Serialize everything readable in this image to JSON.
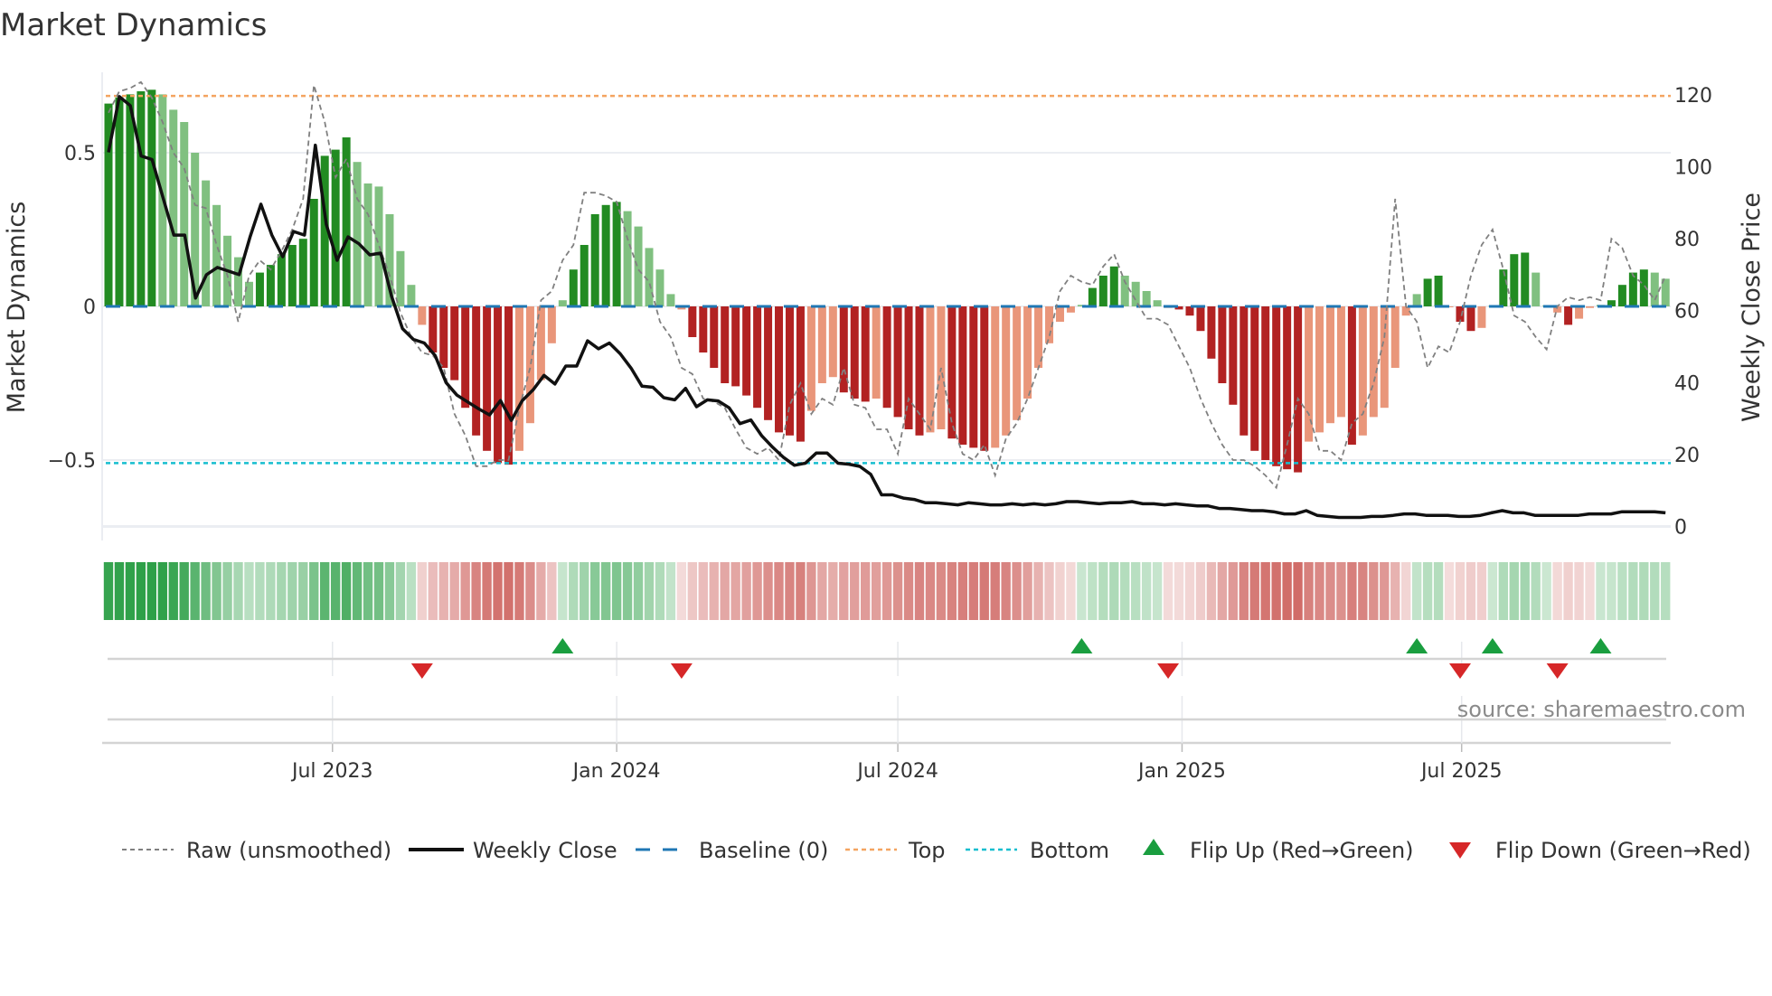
{
  "chart_data": {
    "type": "bar",
    "title": "Market Dynamics",
    "ylabel": "Market Dynamics",
    "ylabel_right": "Weekly Close Price",
    "start_week": "2023-02-06",
    "frequency": "weekly",
    "ylim": [
      -0.73,
      0.76
    ],
    "ylim_right": [
      -1.3,
      130
    ],
    "yticks": [
      {
        "v": 0.5,
        "label": "0.5"
      },
      {
        "v": 0,
        "label": "0"
      },
      {
        "v": -0.5,
        "label": "−0.5"
      }
    ],
    "yticks_right": [
      0,
      20,
      40,
      60,
      80,
      100,
      120
    ],
    "xticks": [
      {
        "date": "2023-07-01",
        "label": "Jul 2023"
      },
      {
        "date": "2024-01-01",
        "label": "Jan 2024"
      },
      {
        "date": "2024-07-01",
        "label": "Jul 2024"
      },
      {
        "date": "2025-01-01",
        "label": "Jan 2025"
      },
      {
        "date": "2025-07-01",
        "label": "Jul 2025"
      }
    ],
    "top_level": 0.685,
    "bottom_level": -0.51,
    "baseline": 0,
    "momentum": [
      0.66,
      0.68,
      0.69,
      0.7,
      0.705,
      0.69,
      0.64,
      0.6,
      0.5,
      0.41,
      0.33,
      0.23,
      0.16,
      0.08,
      0.11,
      0.135,
      0.17,
      0.2,
      0.22,
      0.35,
      0.49,
      0.51,
      0.55,
      0.47,
      0.4,
      0.39,
      0.3,
      0.18,
      0.07,
      -0.06,
      -0.15,
      -0.2,
      -0.24,
      -0.33,
      -0.42,
      -0.47,
      -0.51,
      -0.515,
      -0.47,
      -0.38,
      -0.24,
      -0.12,
      0.02,
      0.12,
      0.2,
      0.3,
      0.33,
      0.34,
      0.31,
      0.26,
      0.19,
      0.12,
      0.04,
      -0.01,
      -0.1,
      -0.15,
      -0.2,
      -0.25,
      -0.26,
      -0.29,
      -0.33,
      -0.37,
      -0.41,
      -0.42,
      -0.44,
      -0.34,
      -0.25,
      -0.23,
      -0.28,
      -0.3,
      -0.31,
      -0.3,
      -0.33,
      -0.36,
      -0.4,
      -0.42,
      -0.41,
      -0.4,
      -0.43,
      -0.45,
      -0.46,
      -0.47,
      -0.46,
      -0.42,
      -0.37,
      -0.3,
      -0.2,
      -0.12,
      -0.05,
      -0.02,
      0.005,
      0.06,
      0.1,
      0.13,
      0.1,
      0.08,
      0.05,
      0.02,
      -0.005,
      -0.01,
      -0.03,
      -0.08,
      -0.17,
      -0.25,
      -0.32,
      -0.42,
      -0.47,
      -0.5,
      -0.52,
      -0.53,
      -0.54,
      -0.44,
      -0.41,
      -0.38,
      -0.36,
      -0.45,
      -0.42,
      -0.36,
      -0.33,
      -0.2,
      -0.03,
      0.04,
      0.09,
      0.1,
      -0.002,
      -0.05,
      -0.08,
      -0.07,
      0.002,
      0.12,
      0.17,
      0.175,
      0.11,
      0.003,
      -0.02,
      -0.06,
      -0.04,
      -0.005,
      0.005,
      0.02,
      0.07,
      0.11,
      0.12,
      0.11,
      0.09
    ],
    "raw": [
      0.63,
      0.7,
      0.71,
      0.73,
      0.68,
      0.6,
      0.5,
      0.45,
      0.33,
      0.32,
      0.2,
      0.1,
      -0.05,
      0.1,
      0.15,
      0.12,
      0.18,
      0.25,
      0.35,
      0.72,
      0.6,
      0.42,
      0.48,
      0.35,
      0.3,
      0.2,
      0.1,
      -0.02,
      -0.1,
      -0.15,
      -0.16,
      -0.2,
      -0.35,
      -0.42,
      -0.52,
      -0.52,
      -0.5,
      -0.5,
      -0.33,
      -0.2,
      0.02,
      0.05,
      0.15,
      0.2,
      0.37,
      0.37,
      0.36,
      0.34,
      0.22,
      0.12,
      0.08,
      -0.05,
      -0.1,
      -0.2,
      -0.22,
      -0.3,
      -0.31,
      -0.33,
      -0.4,
      -0.46,
      -0.48,
      -0.46,
      -0.5,
      -0.32,
      -0.25,
      -0.35,
      -0.3,
      -0.32,
      -0.2,
      -0.32,
      -0.33,
      -0.4,
      -0.4,
      -0.48,
      -0.3,
      -0.35,
      -0.4,
      -0.2,
      -0.38,
      -0.48,
      -0.5,
      -0.45,
      -0.55,
      -0.43,
      -0.38,
      -0.3,
      -0.2,
      -0.1,
      0.05,
      0.1,
      0.08,
      0.07,
      0.13,
      0.17,
      0.08,
      0.02,
      -0.04,
      -0.04,
      -0.06,
      -0.13,
      -0.2,
      -0.3,
      -0.38,
      -0.45,
      -0.5,
      -0.5,
      -0.52,
      -0.55,
      -0.59,
      -0.45,
      -0.3,
      -0.35,
      -0.47,
      -0.47,
      -0.5,
      -0.38,
      -0.35,
      -0.25,
      -0.1,
      0.35,
      0.0,
      -0.05,
      -0.2,
      -0.13,
      -0.15,
      -0.05,
      0.1,
      0.2,
      0.25,
      0.12,
      -0.03,
      -0.05,
      -0.1,
      -0.14,
      0.0,
      0.03,
      0.02,
      0.03,
      0.02,
      0.22,
      0.19,
      0.1,
      0.07,
      0.02,
      0.1
    ],
    "weekly_close": [
      104,
      119.5,
      117,
      103,
      102,
      91.5,
      81,
      81,
      63.5,
      70,
      72,
      71,
      70,
      80.5,
      89.6,
      81,
      75,
      82,
      81,
      106,
      84,
      74,
      80.5,
      78.6,
      75.5,
      76,
      64,
      55,
      52,
      51,
      47.5,
      40,
      36.5,
      34.6,
      32.7,
      31,
      35,
      29.5,
      35,
      38,
      42,
      39.6,
      44.6,
      44.6,
      51.6,
      49.4,
      51,
      48,
      44,
      39,
      38.7,
      35.8,
      35.2,
      38.4,
      33.3,
      35.2,
      34.9,
      33,
      28.6,
      29.6,
      25.2,
      22,
      19.2,
      17,
      17.6,
      20.4,
      20.4,
      17.6,
      17.3,
      16.7,
      14.5,
      8.8,
      8.8,
      7.9,
      7.5,
      6.6,
      6.6,
      6.3,
      6,
      6.6,
      6.3,
      6,
      6,
      6.3,
      6,
      6.3,
      6,
      6.3,
      6.9,
      6.9,
      6.6,
      6.3,
      6.6,
      6.6,
      6.9,
      6.3,
      6.3,
      6,
      6.3,
      6,
      5.7,
      5.7,
      5,
      5,
      4.7,
      4.4,
      4.4,
      4.1,
      3.5,
      3.5,
      4.4,
      3.1,
      2.8,
      2.5,
      2.5,
      2.5,
      2.8,
      2.8,
      3.1,
      3.5,
      3.5,
      3.1,
      3.1,
      3.1,
      2.8,
      2.8,
      3.1,
      3.8,
      4.4,
      3.8,
      3.8,
      3.1,
      3.1,
      3.1,
      3.1,
      3.1,
      3.5,
      3.5,
      3.5,
      4.1,
      4.1,
      4.1,
      4.1,
      3.8
    ],
    "flip_up": [
      "2023-11-27",
      "2024-10-28",
      "2025-06-02",
      "2025-07-21",
      "2025-09-29"
    ],
    "flip_down": [
      "2023-08-28",
      "2024-02-12",
      "2024-12-23",
      "2025-06-30",
      "2025-09-01"
    ],
    "legend": {
      "position": "bottom",
      "raw": "Raw (unsmoothed)",
      "close": "Weekly Close",
      "baseline": "Baseline (0)",
      "top": "Top",
      "bottom": "Bottom",
      "flip_up": "Flip Up (Red→Green)",
      "flip_down": "Flip Down (Green→Red)"
    },
    "colors": {
      "dark_green": "#228b22",
      "light_green": "#80c080",
      "dark_red": "#b22222",
      "light_red": "#e9967a",
      "raw": "#808080",
      "close": "#111111",
      "baseline": "#1f77b4",
      "top": "#f4a460",
      "bottom": "#17becf",
      "flip_up": "#1a9e3f",
      "flip_down": "#d62728"
    },
    "source": "source: sharemaestro.com"
  }
}
